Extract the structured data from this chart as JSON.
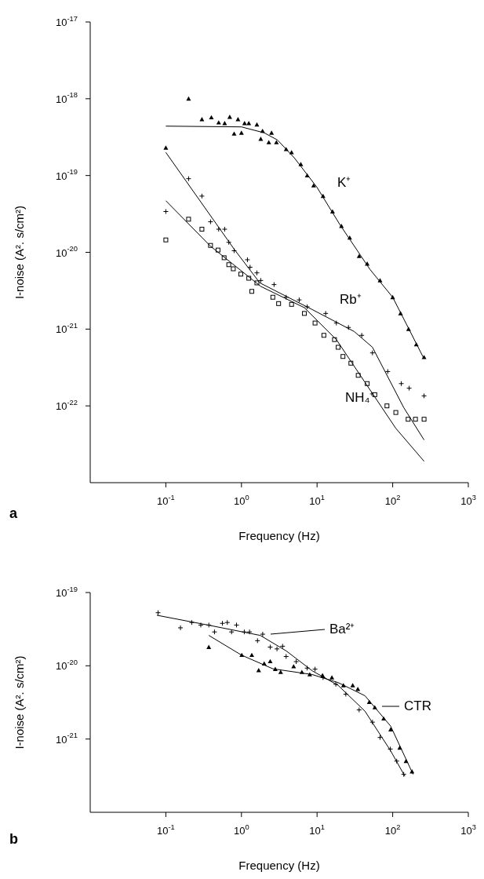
{
  "chart_data": [
    {
      "type": "scatter",
      "xlabel": "Frequency (Hz)",
      "ylabel": "I-noise (A². s/cm²)",
      "log": "xy",
      "xlim": [
        0.01,
        1000
      ],
      "ylim": [
        1e-23,
        1e-17
      ],
      "xticks": [
        {
          "value": 0.1,
          "label": "10$^{-1}$"
        },
        {
          "value": 1,
          "label": "10$^{0}$"
        },
        {
          "value": 10,
          "label": "10$^{1}$"
        },
        {
          "value": 100,
          "label": "10$^{2}$"
        },
        {
          "value": 1000,
          "label": "10$^{3}$"
        }
      ],
      "yticks": [
        {
          "value": 1e-22,
          "label": "10$^{-22}$"
        },
        {
          "value": 1e-21,
          "label": "10$^{-21}$"
        },
        {
          "value": 1e-20,
          "label": "10$^{-20}$"
        },
        {
          "value": 1e-19,
          "label": "10$^{-19}$"
        },
        {
          "value": 1e-18,
          "label": "10$^{-18}$"
        },
        {
          "value": 1e-17,
          "label": "10$^{-17}$"
        }
      ],
      "series": [
        {
          "type": "scatter",
          "name": "K⁺",
          "marker": "triangle",
          "color": "#000000",
          "x": [
            0.1,
            0.2,
            0.3,
            0.4,
            0.5,
            0.6,
            0.7,
            0.8,
            0.9,
            1.0,
            1.1,
            1.25,
            1.6,
            1.8,
            1.9,
            2.3,
            2.5,
            2.9,
            3.9,
            4.6,
            6.1,
            7.4,
            9.0,
            12,
            16,
            21,
            27,
            36,
            46,
            68,
            100,
            127,
            162,
            205,
            260
          ],
          "values": [
            2.3e-19,
            1e-18,
            5.4e-19,
            5.7e-19,
            4.9e-19,
            4.8e-19,
            5.8e-19,
            3.5e-19,
            5.4e-19,
            3.6e-19,
            4.8e-19,
            4.8e-19,
            4.6e-19,
            3e-19,
            3.8e-19,
            2.7e-19,
            3.6e-19,
            2.7e-19,
            2.2e-19,
            2e-19,
            1.4e-19,
            1e-19,
            7.4e-20,
            5.4e-20,
            3.4e-20,
            2.2e-20,
            1.55e-20,
            8.9e-21,
            7.1e-21,
            4.3e-21,
            2.6e-21,
            1.6e-21,
            1e-21,
            6.3e-22,
            4.3e-22
          ]
        },
        {
          "type": "line",
          "marker": "none",
          "color": "#000000",
          "x": [
            0.1,
            1,
            2,
            3,
            5,
            10,
            20,
            50,
            100,
            260
          ],
          "values": [
            4.4e-19,
            4.3e-19,
            3.6e-19,
            2.9e-19,
            1.7e-19,
            7e-20,
            2.3e-20,
            6e-21,
            2.6e-21,
            4.1e-22
          ]
        },
        {
          "type": "scatter",
          "name": "Rb⁺",
          "marker": "cross",
          "color": "#000000",
          "x": [
            0.1,
            0.2,
            0.3,
            0.39,
            0.5,
            0.6,
            0.68,
            0.8,
            1.2,
            1.3,
            1.6,
            1.8,
            2.7,
            3.9,
            5.8,
            7.4,
            13,
            18,
            26,
            39,
            54,
            86,
            130,
            165,
            260
          ],
          "values": [
            3.4e-20,
            9.1e-20,
            5.4e-20,
            2.5e-20,
            2e-20,
            2e-20,
            1.35e-20,
            1.05e-20,
            8e-21,
            6.4e-21,
            5.4e-21,
            4.3e-21,
            3.8e-21,
            2.6e-21,
            2.4e-21,
            1.95e-21,
            1.6e-21,
            1.2e-21,
            1.05e-21,
            8.3e-22,
            4.9e-22,
            2.8e-22,
            1.95e-22,
            1.7e-22,
            1.35e-22
          ]
        },
        {
          "type": "line",
          "marker": "none",
          "color": "#000000",
          "x": [
            0.1,
            0.8,
            1.75,
            8.6,
            31,
            54,
            140,
            260
          ],
          "values": [
            2e-19,
            1.1e-20,
            4e-21,
            1.8e-21,
            9.3e-22,
            5.8e-22,
            9.5e-23,
            3.6e-23
          ]
        },
        {
          "type": "scatter",
          "name": "NH₄⁺",
          "marker": "square",
          "color": "#000000",
          "x": [
            0.1,
            0.2,
            0.3,
            0.39,
            0.49,
            0.59,
            0.68,
            0.78,
            0.98,
            1.25,
            1.37,
            1.6,
            2.6,
            3.1,
            4.6,
            6.8,
            9.4,
            12.3,
            17,
            19,
            22,
            28,
            35,
            46,
            58,
            84,
            110,
            160,
            200,
            260
          ],
          "values": [
            1.45e-20,
            2.7e-20,
            2e-20,
            1.23e-20,
            1.07e-20,
            8.5e-21,
            6.9e-21,
            6.1e-21,
            5.2e-21,
            4.6e-21,
            3.1e-21,
            4e-21,
            2.6e-21,
            2.15e-21,
            2.1e-21,
            1.6e-21,
            1.2e-21,
            8.3e-22,
            7.3e-22,
            5.8e-22,
            4.4e-22,
            3.6e-22,
            2.5e-22,
            1.95e-22,
            1.4e-22,
            1e-22,
            8.2e-23,
            6.7e-23,
            6.7e-23,
            6.7e-23
          ]
        },
        {
          "type": "line",
          "marker": "none",
          "color": "#000000",
          "x": [
            0.1,
            0.39,
            1.8,
            6.8,
            18,
            42,
            110,
            260
          ],
          "values": [
            4.7e-20,
            1.2e-20,
            3.6e-21,
            1.9e-21,
            7.3e-22,
            2.1e-22,
            5.1e-23,
            1.9e-23
          ]
        }
      ],
      "annotations": [
        "a"
      ]
    },
    {
      "type": "scatter",
      "xlabel": "Frequency (Hz)",
      "ylabel": "I-noise (A². s/cm²)",
      "log": "xy",
      "xlim": [
        0.01,
        1000
      ],
      "ylim": [
        1e-22,
        1e-19
      ],
      "xticks": [
        {
          "value": 0.1,
          "label": "10$^{-1}$"
        },
        {
          "value": 1,
          "label": "10$^{0}$"
        },
        {
          "value": 10,
          "label": "10$^{1}$"
        },
        {
          "value": 100,
          "label": "10$^{2}$"
        },
        {
          "value": 1000,
          "label": "10$^{3}$"
        }
      ],
      "yticks": [
        {
          "value": 1e-21,
          "label": "10$^{-21}$"
        },
        {
          "value": 1e-20,
          "label": "10$^{-20}$"
        },
        {
          "value": 1e-19,
          "label": "10$^{-19}$"
        }
      ],
      "series": [
        {
          "type": "scatter",
          "name": "Ba²⁺",
          "marker": "cross",
          "color": "#000000",
          "x": [
            0.079,
            0.156,
            0.22,
            0.29,
            0.37,
            0.44,
            0.56,
            0.65,
            0.74,
            0.86,
            1.09,
            1.28,
            1.63,
            1.91,
            2.4,
            2.95,
            3.5,
            3.9,
            5.3,
            7.4,
            9.4,
            12,
            17.7,
            24,
            36,
            54,
            68,
            93,
            113,
            140
          ],
          "values": [
            5.3e-20,
            3.3e-20,
            3.9e-20,
            3.6e-20,
            3.6e-20,
            2.9e-20,
            3.8e-20,
            3.9e-20,
            2.9e-20,
            3.6e-20,
            2.9e-20,
            2.9e-20,
            2.2e-20,
            2.7e-20,
            1.8e-20,
            1.7e-20,
            1.85e-20,
            1.34e-20,
            1.14e-20,
            9.3e-21,
            9e-21,
            6.9e-21,
            5.6e-21,
            4.1e-21,
            2.5e-21,
            1.7e-21,
            1.05e-21,
            7.3e-22,
            5e-22,
            3.3e-22
          ]
        },
        {
          "type": "line",
          "marker": "none",
          "color": "#000000",
          "x": [
            0.076,
            0.36,
            1.77,
            3.9,
            8.7,
            19,
            43,
            94,
            145
          ],
          "values": [
            4.9e-20,
            3.6e-20,
            2.6e-20,
            1.6e-20,
            8.5e-21,
            5.4e-21,
            2.4e-21,
            6.9e-22,
            3.1e-22
          ]
        },
        {
          "type": "scatter",
          "name": "CTR",
          "marker": "triangle",
          "color": "#000000",
          "x": [
            0.37,
            1.01,
            1.37,
            1.69,
            2.0,
            2.4,
            2.8,
            3.3,
            4.9,
            6.3,
            8.0,
            11.8,
            15.7,
            22.3,
            29.6,
            34.6,
            49,
            58,
            76,
            94,
            124,
            150,
            180
          ],
          "values": [
            1.8e-20,
            1.4e-20,
            1.4e-20,
            8.7e-21,
            1.07e-20,
            1.15e-20,
            9e-21,
            8.2e-21,
            9.8e-21,
            8.2e-21,
            7.6e-21,
            7.4e-21,
            6.9e-21,
            5.4e-21,
            5.4e-21,
            4.8e-21,
            3.2e-21,
            2.7e-21,
            1.9e-21,
            1.35e-21,
            7.6e-22,
            5e-22,
            3.6e-22
          ]
        },
        {
          "type": "line",
          "marker": "none",
          "color": "#000000",
          "x": [
            0.37,
            1.0,
            2.6,
            8.6,
            19,
            43,
            94,
            186
          ],
          "values": [
            2.6e-20,
            1.4e-20,
            9.1e-21,
            7.6e-21,
            5.9e-21,
            3.9e-21,
            1.5e-21,
            3.3e-22
          ]
        }
      ],
      "annotations": [
        "b"
      ],
      "legend": "right"
    }
  ]
}
